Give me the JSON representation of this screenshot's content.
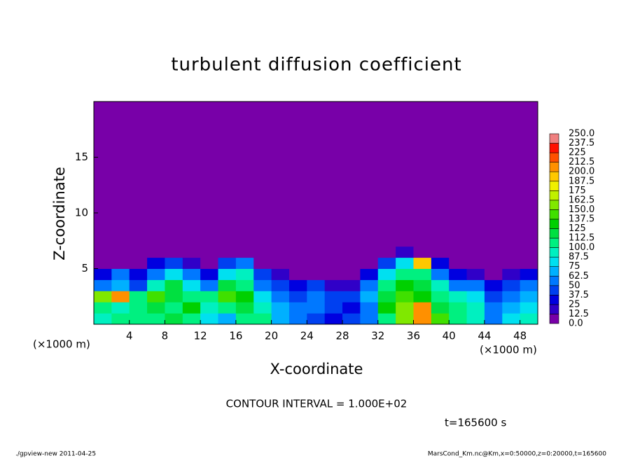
{
  "chart_data": {
    "type": "heatmap",
    "title": "turbulent diffusion coefficient",
    "x_label": "X-coordinate",
    "y_label": "Z-coordinate",
    "x_unit_label": "(×1000 m)",
    "y_unit_label": "(×1000 m)",
    "annotation": "CONTOUR INTERVAL = 1.000E+02",
    "time_label": "t=165600 s",
    "footer_left": "./gpview-new  2011-04-25",
    "footer_right": "MarsCond_Km.nc@Km,x=0:50000,z=0:20000,t=165600",
    "xlim": [
      0,
      50
    ],
    "ylim": [
      0,
      20
    ],
    "xticks": [
      4,
      8,
      12,
      16,
      20,
      24,
      28,
      32,
      36,
      40,
      44,
      48
    ],
    "yticks": [
      5,
      10,
      15
    ],
    "xbins": [
      0,
      2,
      4,
      6,
      8,
      10,
      12,
      14,
      16,
      18,
      20,
      22,
      24,
      26,
      28,
      30,
      32,
      34,
      36,
      38,
      40,
      42,
      44,
      46,
      48,
      50
    ],
    "ybins": [
      0,
      1,
      2,
      3,
      4,
      5,
      6,
      7,
      20
    ],
    "values": [
      [
        90,
        100,
        110,
        100,
        120,
        110,
        80,
        70,
        100,
        110,
        70,
        60,
        40,
        30,
        40,
        50,
        100,
        150,
        210,
        140,
        110,
        90,
        60,
        80,
        90
      ],
      [
        100,
        90,
        100,
        120,
        110,
        130,
        90,
        110,
        120,
        90,
        70,
        60,
        50,
        40,
        30,
        60,
        130,
        160,
        200,
        120,
        100,
        90,
        50,
        70,
        80
      ],
      [
        160,
        210,
        110,
        140,
        120,
        110,
        100,
        140,
        130,
        80,
        60,
        40,
        50,
        40,
        40,
        70,
        120,
        140,
        130,
        110,
        90,
        80,
        40,
        60,
        70
      ],
      [
        60,
        70,
        40,
        90,
        120,
        80,
        50,
        120,
        110,
        60,
        40,
        30,
        40,
        20,
        20,
        50,
        100,
        130,
        120,
        90,
        50,
        60,
        30,
        40,
        60
      ],
      [
        30,
        50,
        30,
        60,
        80,
        50,
        30,
        80,
        90,
        40,
        20,
        10,
        10,
        10,
        10,
        30,
        80,
        110,
        100,
        60,
        30,
        20,
        10,
        20,
        30
      ],
      [
        10,
        10,
        10,
        30,
        40,
        20,
        10,
        40,
        50,
        10,
        0,
        0,
        0,
        0,
        0,
        10,
        40,
        80,
        190,
        30,
        10,
        0,
        10,
        0,
        10
      ],
      [
        0,
        0,
        0,
        0,
        10,
        0,
        0,
        10,
        10,
        0,
        0,
        0,
        0,
        0,
        0,
        0,
        0,
        20,
        10,
        0,
        0,
        0,
        0,
        0,
        0
      ],
      [
        0,
        0,
        0,
        0,
        0,
        0,
        0,
        0,
        0,
        0,
        0,
        0,
        0,
        0,
        0,
        0,
        0,
        0,
        0,
        0,
        0,
        0,
        0,
        0,
        0
      ]
    ],
    "levels": [
      {
        "value": 0,
        "label": "0.0"
      },
      12.5,
      25,
      37.5,
      50,
      62.5,
      75,
      87.5,
      {
        "value": 100,
        "label": "100.0"
      },
      112.5,
      125,
      137.5,
      {
        "value": 150,
        "label": "150.0"
      },
      162.5,
      175,
      187.5,
      {
        "value": 200,
        "label": "200.0"
      },
      212.5,
      225,
      237.5,
      {
        "value": 250,
        "label": "250.0"
      }
    ],
    "level_colors": [
      "#7800a8",
      "#3000c8",
      "#0000e0",
      "#0040f0",
      "#0078ff",
      "#00b0ff",
      "#00e0f0",
      "#00f0c0",
      "#00f080",
      "#00e040",
      "#00d000",
      "#40e000",
      "#80e800",
      "#c0f000",
      "#f0f000",
      "#ffc800",
      "#ff9000",
      "#ff5000",
      "#ff1000",
      "#f08080"
    ]
  }
}
